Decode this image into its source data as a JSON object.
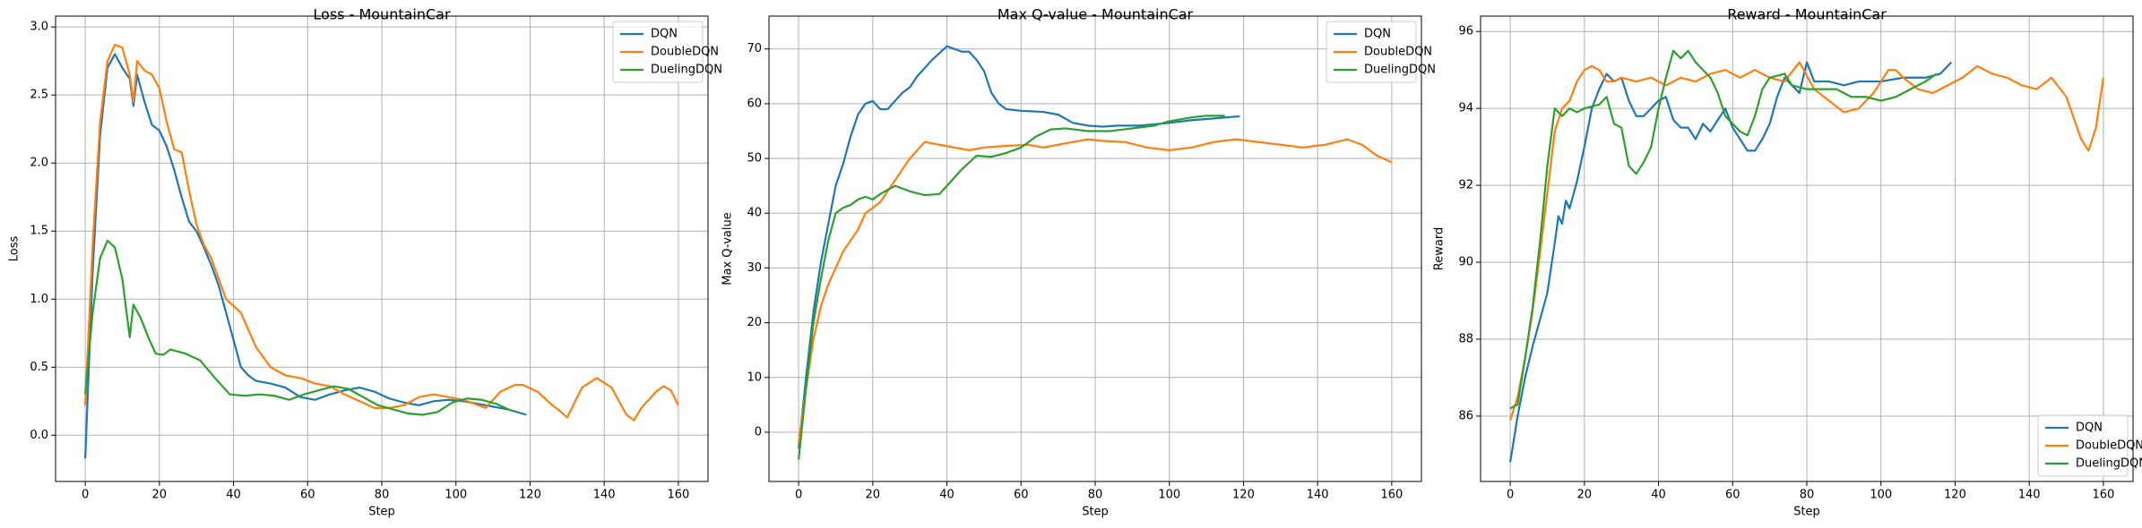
{
  "chart_data": [
    {
      "type": "line",
      "title": "Loss - MountainCar",
      "xlabel": "Step",
      "ylabel": "Loss",
      "xlim": [
        -8,
        168
      ],
      "ylim": [
        -0.34,
        3.08
      ],
      "xticks": [
        0,
        20,
        40,
        60,
        80,
        100,
        120,
        140,
        160
      ],
      "yticks": [
        {
          "value": 0,
          "label": "0.0"
        },
        0.5,
        {
          "value": 1,
          "label": "1.0"
        },
        1.5,
        {
          "value": 2,
          "label": "2.0"
        },
        2.5,
        {
          "value": 3,
          "label": "3.0"
        }
      ],
      "grid": true,
      "legend": "upper right",
      "series": [
        {
          "name": "DQN",
          "color": "#1f77b4",
          "x": [
            0,
            2,
            4,
            6,
            8,
            10,
            12,
            13,
            14,
            16,
            18,
            20,
            22,
            24,
            26,
            28,
            30,
            32,
            34,
            36,
            38,
            40,
            42,
            44,
            46,
            50,
            54,
            58,
            62,
            66,
            70,
            74,
            78,
            82,
            86,
            90,
            94,
            98,
            102,
            106,
            110,
            114,
            119
          ],
          "values": [
            -0.17,
            1.2,
            2.2,
            2.7,
            2.8,
            2.7,
            2.62,
            2.42,
            2.65,
            2.45,
            2.28,
            2.24,
            2.12,
            1.95,
            1.75,
            1.57,
            1.5,
            1.38,
            1.25,
            1.1,
            0.9,
            0.7,
            0.5,
            0.44,
            0.4,
            0.38,
            0.35,
            0.28,
            0.26,
            0.3,
            0.33,
            0.35,
            0.32,
            0.27,
            0.24,
            0.22,
            0.25,
            0.26,
            0.25,
            0.23,
            0.21,
            0.19,
            0.15
          ]
        },
        {
          "name": "DoubleDQN",
          "color": "#ff7f0e",
          "x": [
            0,
            2,
            4,
            6,
            8,
            10,
            12,
            13,
            14,
            16,
            18,
            20,
            22,
            24,
            26,
            28,
            30,
            32,
            34,
            36,
            38,
            42,
            46,
            50,
            54,
            58,
            62,
            66,
            70,
            74,
            78,
            82,
            86,
            90,
            94,
            98,
            102,
            106,
            108,
            112,
            116,
            118,
            122,
            126,
            128,
            130,
            134,
            138,
            142,
            146,
            148,
            150,
            154,
            156,
            158,
            160
          ],
          "values": [
            0.22,
            1.4,
            2.3,
            2.75,
            2.87,
            2.85,
            2.65,
            2.45,
            2.75,
            2.68,
            2.65,
            2.55,
            2.3,
            2.1,
            2.08,
            1.8,
            1.55,
            1.4,
            1.3,
            1.15,
            1.0,
            0.9,
            0.65,
            0.5,
            0.44,
            0.42,
            0.38,
            0.36,
            0.3,
            0.25,
            0.2,
            0.2,
            0.22,
            0.28,
            0.3,
            0.28,
            0.26,
            0.22,
            0.2,
            0.32,
            0.37,
            0.37,
            0.32,
            0.22,
            0.18,
            0.13,
            0.35,
            0.42,
            0.35,
            0.15,
            0.11,
            0.2,
            0.32,
            0.36,
            0.33,
            0.22
          ]
        },
        {
          "name": "DuelingDQN",
          "color": "#2ca02c",
          "x": [
            0,
            2,
            4,
            6,
            8,
            10,
            12,
            13,
            15,
            17,
            19,
            21,
            23,
            27,
            31,
            35,
            39,
            43,
            47,
            51,
            55,
            59,
            63,
            67,
            71,
            75,
            79,
            83,
            87,
            91,
            95,
            99,
            103,
            107,
            111,
            115
          ],
          "values": [
            0.3,
            0.9,
            1.3,
            1.43,
            1.38,
            1.15,
            0.72,
            0.96,
            0.86,
            0.72,
            0.6,
            0.59,
            0.63,
            0.6,
            0.55,
            0.42,
            0.3,
            0.29,
            0.3,
            0.29,
            0.26,
            0.3,
            0.33,
            0.36,
            0.34,
            0.28,
            0.22,
            0.19,
            0.16,
            0.15,
            0.17,
            0.24,
            0.27,
            0.26,
            0.23,
            0.18
          ]
        }
      ]
    },
    {
      "type": "line",
      "title": "Max Q-value - MountainCar",
      "xlabel": "Step",
      "ylabel": "Max Q-value",
      "xlim": [
        -8,
        168
      ],
      "ylim": [
        -9,
        76
      ],
      "xticks": [
        0,
        20,
        40,
        60,
        80,
        100,
        120,
        140,
        160
      ],
      "yticks": [
        0,
        10,
        20,
        30,
        40,
        50,
        60,
        70
      ],
      "grid": true,
      "legend": "upper right",
      "series": [
        {
          "name": "DQN",
          "color": "#1f77b4",
          "x": [
            0,
            2,
            4,
            6,
            8,
            10,
            12,
            14,
            16,
            18,
            20,
            22,
            24,
            26,
            28,
            30,
            32,
            36,
            40,
            42,
            44,
            46,
            48,
            50,
            52,
            54,
            56,
            60,
            66,
            70,
            74,
            78,
            82,
            86,
            92,
            100,
            106,
            112,
            119
          ],
          "values": [
            -3,
            10,
            22,
            31,
            38,
            45,
            49,
            54,
            58,
            60,
            60.5,
            59,
            59,
            60.5,
            62,
            63,
            65,
            68,
            70.5,
            70,
            69.5,
            69.5,
            68,
            66,
            62,
            60,
            59,
            58.7,
            58.5,
            58,
            56.5,
            56,
            55.8,
            56,
            56,
            56.5,
            57,
            57.3,
            57.7
          ]
        },
        {
          "name": "DoubleDQN",
          "color": "#ff7f0e",
          "x": [
            0,
            2,
            4,
            6,
            8,
            10,
            12,
            14,
            16,
            18,
            22,
            26,
            30,
            34,
            38,
            42,
            46,
            50,
            56,
            62,
            66,
            70,
            74,
            78,
            82,
            88,
            94,
            100,
            106,
            112,
            118,
            124,
            130,
            136,
            142,
            148,
            152,
            156,
            160
          ],
          "values": [
            -2,
            8,
            17,
            23,
            27,
            30,
            33,
            35,
            37,
            40,
            42,
            46,
            50,
            53,
            52.5,
            52,
            51.5,
            52,
            52.3,
            52.5,
            52,
            52.5,
            53,
            53.5,
            53.2,
            53,
            52,
            51.5,
            52,
            53,
            53.5,
            53,
            52.5,
            52,
            52.5,
            53.5,
            52.5,
            50.5,
            49.3
          ]
        },
        {
          "name": "DuelingDQN",
          "color": "#2ca02c",
          "x": [
            0,
            2,
            4,
            6,
            8,
            10,
            12,
            14,
            16,
            18,
            20,
            22,
            26,
            30,
            34,
            38,
            40,
            44,
            48,
            52,
            56,
            60,
            64,
            68,
            72,
            78,
            84,
            90,
            96,
            100,
            106,
            110,
            115
          ],
          "values": [
            -5,
            8,
            20,
            28,
            35,
            40,
            41,
            41.5,
            42.5,
            43,
            42.5,
            43.5,
            45,
            44,
            43.3,
            43.5,
            45,
            48,
            50.5,
            50.3,
            51,
            52,
            54,
            55.3,
            55.5,
            55,
            55,
            55.5,
            56,
            56.8,
            57.5,
            57.8,
            57.8
          ]
        }
      ]
    },
    {
      "type": "line",
      "title": "Reward - MountainCar",
      "xlabel": "Step",
      "ylabel": "Reward",
      "xlim": [
        -8,
        168
      ],
      "ylim": [
        84.3,
        96.4
      ],
      "xticks": [
        0,
        20,
        40,
        60,
        80,
        100,
        120,
        140,
        160
      ],
      "yticks": [
        86,
        88,
        90,
        92,
        94,
        96
      ],
      "grid": true,
      "legend": "lower right",
      "series": [
        {
          "name": "DQN",
          "color": "#1f77b4",
          "x": [
            0,
            2,
            4,
            6,
            8,
            10,
            12,
            13,
            14,
            15,
            16,
            18,
            20,
            22,
            24,
            26,
            28,
            30,
            32,
            34,
            36,
            38,
            40,
            42,
            44,
            46,
            48,
            50,
            52,
            54,
            56,
            58,
            60,
            62,
            64,
            66,
            68,
            70,
            72,
            74,
            76,
            78,
            80,
            82,
            86,
            90,
            94,
            100,
            106,
            112,
            116,
            119
          ],
          "values": [
            84.8,
            86,
            87,
            87.8,
            88.5,
            89.2,
            90.5,
            91.2,
            91,
            91.6,
            91.4,
            92.1,
            93,
            94,
            94.5,
            94.9,
            94.7,
            94.8,
            94.2,
            93.8,
            93.8,
            94,
            94.2,
            94.3,
            93.7,
            93.5,
            93.5,
            93.2,
            93.6,
            93.4,
            93.7,
            94,
            93.5,
            93.2,
            92.9,
            92.9,
            93.2,
            93.6,
            94.3,
            94.8,
            94.6,
            94.4,
            95.2,
            94.7,
            94.7,
            94.6,
            94.7,
            94.7,
            94.8,
            94.8,
            94.9,
            95.2
          ]
        },
        {
          "name": "DoubleDQN",
          "color": "#ff7f0e",
          "x": [
            0,
            2,
            4,
            6,
            8,
            10,
            12,
            14,
            16,
            18,
            20,
            22,
            24,
            26,
            28,
            30,
            34,
            38,
            42,
            46,
            50,
            54,
            58,
            62,
            66,
            70,
            74,
            78,
            82,
            86,
            90,
            94,
            98,
            102,
            104,
            106,
            110,
            114,
            118,
            122,
            126,
            130,
            134,
            138,
            142,
            146,
            150,
            154,
            156,
            158,
            160
          ],
          "values": [
            85.9,
            86.5,
            87.5,
            88.7,
            90.2,
            91.8,
            93.4,
            94,
            94.2,
            94.7,
            95,
            95.1,
            95,
            94.7,
            94.7,
            94.8,
            94.7,
            94.8,
            94.6,
            94.8,
            94.7,
            94.9,
            95,
            94.8,
            95,
            94.8,
            94.7,
            95.2,
            94.5,
            94.2,
            93.9,
            94,
            94.4,
            95,
            95,
            94.8,
            94.5,
            94.4,
            94.6,
            94.8,
            95.1,
            94.9,
            94.8,
            94.6,
            94.5,
            94.8,
            94.3,
            93.2,
            92.9,
            93.5,
            94.8
          ]
        },
        {
          "name": "DuelingDQN",
          "color": "#2ca02c",
          "x": [
            0,
            2,
            4,
            6,
            8,
            10,
            12,
            14,
            16,
            18,
            20,
            24,
            26,
            28,
            30,
            32,
            34,
            36,
            38,
            40,
            42,
            44,
            46,
            48,
            50,
            52,
            54,
            56,
            58,
            60,
            62,
            64,
            66,
            68,
            70,
            74,
            76,
            80,
            84,
            88,
            92,
            96,
            100,
            104,
            108,
            112,
            115
          ],
          "values": [
            86.2,
            86.3,
            87.5,
            88.8,
            90.5,
            92.5,
            94,
            93.8,
            94,
            93.9,
            94,
            94.1,
            94.3,
            93.6,
            93.5,
            92.5,
            92.3,
            92.6,
            93,
            94,
            94.8,
            95.5,
            95.3,
            95.5,
            95.2,
            95,
            94.8,
            94.4,
            93.8,
            93.6,
            93.4,
            93.3,
            93.8,
            94.5,
            94.8,
            94.9,
            94.6,
            94.5,
            94.5,
            94.5,
            94.3,
            94.3,
            94.2,
            94.3,
            94.5,
            94.7,
            94.9
          ]
        }
      ]
    }
  ]
}
